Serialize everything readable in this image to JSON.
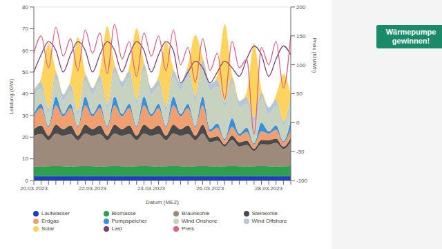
{
  "chart_data": {
    "type": "stacked_area",
    "stacked": true,
    "x_label": "Datum (MEZ)",
    "y_label": "Leistung (GW)",
    "y2_label": "Preis (€/MWh)",
    "annotation": "Wärmepumpe gewinnen!",
    "legend": "bottom",
    "grid": true,
    "categories": [
      "20.03.2023",
      null,
      null,
      null,
      null,
      null,
      null,
      null,
      "22.03.2023",
      null,
      null,
      null,
      null,
      null,
      null,
      null,
      "24.03.2023",
      null,
      null,
      null,
      null,
      null,
      null,
      null,
      "26.03.2023",
      null,
      null,
      null,
      null,
      null,
      null,
      null,
      "28.03.2023",
      null,
      null,
      null
    ],
    "ylim": [
      0,
      80
    ],
    "yticks": [
      0,
      10,
      20,
      30,
      40,
      50,
      60,
      70,
      80
    ],
    "y2lim": [
      -100,
      200
    ],
    "y2ticks": [
      -100,
      -50,
      0,
      50,
      100,
      150,
      200
    ],
    "series": [
      {
        "name": "Laufwasser",
        "color": "#1f3fbf",
        "values": [
          2.1,
          2.0,
          2.1,
          2.1,
          2.1,
          2.0,
          2.1,
          2.1,
          2.1,
          2.0,
          2.1,
          2.1,
          2.1,
          2.0,
          2.1,
          2.1,
          2.1,
          2.0,
          2.1,
          2.1,
          2.1,
          2.0,
          2.1,
          2.1,
          2.1,
          2.0,
          2.1,
          2.1,
          2.1,
          2.0,
          2.1,
          2.1,
          2.1,
          2.0,
          2.1,
          2.1
        ]
      },
      {
        "name": "Biomasse",
        "color": "#2e9e4f",
        "values": [
          4.5,
          4.4,
          4.5,
          4.6,
          4.5,
          4.4,
          4.5,
          4.6,
          4.5,
          4.4,
          4.5,
          4.6,
          4.5,
          4.4,
          4.5,
          4.6,
          4.5,
          4.4,
          4.5,
          4.6,
          4.5,
          4.4,
          4.5,
          4.6,
          4.5,
          4.4,
          4.5,
          4.6,
          4.5,
          4.4,
          4.5,
          4.6,
          4.5,
          4.4,
          4.5,
          4.6
        ]
      },
      {
        "name": "Braunkohle",
        "color": "#9e8a7a",
        "values": [
          14,
          15,
          12,
          15,
          14,
          15,
          12,
          15,
          14,
          15,
          12,
          15,
          14,
          15,
          12,
          15,
          14,
          15,
          12,
          15,
          14,
          15,
          12,
          15,
          11,
          12,
          9,
          12,
          9,
          10,
          7,
          10,
          10,
          11,
          8,
          11
        ]
      },
      {
        "name": "Steinkohle",
        "color": "#4a4a4a",
        "values": [
          3,
          4,
          2,
          4,
          3,
          4,
          2,
          4,
          3,
          4,
          2,
          4,
          3,
          4,
          2,
          4,
          3,
          4,
          2,
          4,
          3,
          4,
          2,
          4,
          2,
          2,
          1,
          2,
          2,
          2,
          1,
          2,
          2,
          2,
          1,
          2
        ]
      },
      {
        "name": "Erdgas",
        "color": "#f0a070",
        "values": [
          6,
          8,
          4,
          9,
          6,
          8,
          4,
          9,
          6,
          8,
          4,
          9,
          6,
          8,
          4,
          9,
          6,
          8,
          4,
          9,
          6,
          8,
          4,
          9,
          3,
          4,
          2,
          4,
          3,
          4,
          2,
          4,
          3,
          4,
          2,
          4
        ]
      },
      {
        "name": "Pumpspeicher",
        "color": "#3a8fd9",
        "values": [
          1,
          2,
          0.5,
          4,
          1,
          2,
          0.5,
          4,
          1,
          2,
          0.5,
          4,
          1,
          2,
          0.5,
          4,
          1,
          2,
          0.5,
          4,
          1,
          2,
          0.5,
          4,
          1,
          2,
          0.5,
          4,
          1,
          2,
          0.5,
          4,
          1,
          2,
          0.5,
          4
        ]
      },
      {
        "name": "Wind Onshore",
        "color": "#c7d3bf",
        "values": [
          8,
          7,
          6,
          8,
          6,
          6,
          5,
          7,
          9,
          10,
          8,
          11,
          12,
          12,
          10,
          12,
          9,
          8,
          7,
          9,
          11,
          13,
          12,
          14,
          18,
          17,
          15,
          16,
          12,
          11,
          10,
          11,
          8,
          9,
          7,
          8
        ]
      },
      {
        "name": "Wind Offshore",
        "color": "#b5c6d6",
        "values": [
          3,
          3,
          2,
          3,
          3,
          3,
          2,
          3,
          3,
          3,
          2,
          3,
          3,
          3,
          2,
          3,
          3,
          3,
          2,
          3,
          3,
          3,
          2,
          3,
          3,
          3,
          2,
          3,
          3,
          3,
          2,
          3,
          3,
          3,
          2,
          3
        ]
      },
      {
        "name": "Solar",
        "color": "#ffd45e",
        "values": [
          0,
          2,
          30,
          1,
          0,
          2,
          34,
          1,
          0,
          2,
          36,
          1,
          0,
          2,
          33,
          1,
          0,
          2,
          30,
          1,
          0,
          2,
          28,
          1,
          0,
          2,
          36,
          1,
          0,
          2,
          34,
          1,
          0,
          2,
          22,
          1
        ]
      },
      {
        "name": "Last",
        "color": "#7a3d7a",
        "type": "line",
        "values": [
          50,
          58,
          64,
          60,
          50,
          58,
          64,
          60,
          50,
          58,
          64,
          60,
          50,
          58,
          64,
          60,
          50,
          58,
          64,
          60,
          45,
          50,
          55,
          52,
          45,
          50,
          55,
          52,
          48,
          56,
          62,
          58,
          48,
          56,
          62,
          58
        ]
      },
      {
        "name": "Preis",
        "color": "#e0607e",
        "type": "line",
        "axis": "y2",
        "values": [
          120,
          150,
          95,
          165,
          115,
          145,
          90,
          160,
          120,
          155,
          85,
          170,
          110,
          140,
          80,
          155,
          115,
          150,
          90,
          160,
          100,
          130,
          70,
          145,
          90,
          120,
          40,
          140,
          95,
          110,
          -20,
          130,
          100,
          140,
          60,
          150
        ]
      }
    ]
  }
}
